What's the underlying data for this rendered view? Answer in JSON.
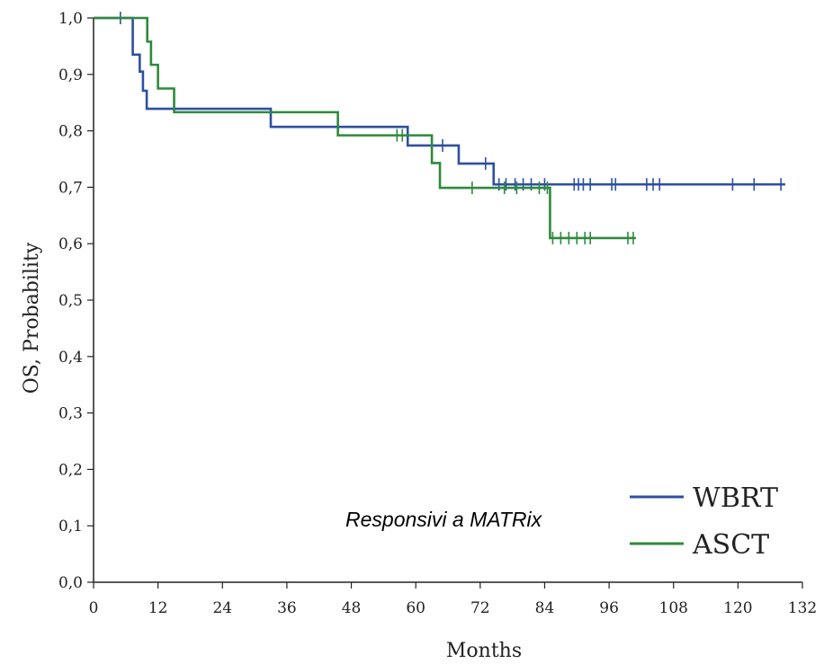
{
  "chart_data": {
    "type": "line",
    "title": "",
    "xlabel": "Months",
    "ylabel": "OS, Probability",
    "xlim": [
      0,
      132
    ],
    "ylim": [
      0,
      1
    ],
    "x_ticks": [
      "0",
      "12",
      "24",
      "36",
      "48",
      "60",
      "72",
      "84",
      "96",
      "108",
      "120",
      "132"
    ],
    "y_ticks": [
      "0,0",
      "0,1",
      "0,2",
      "0,3",
      "0,4",
      "0,5",
      "0,6",
      "0,7",
      "0,8",
      "0,9",
      "1,0"
    ],
    "grid": false,
    "legend_position": "bottom-right",
    "annotation": "Responsivi a MATRix",
    "series": [
      {
        "name": "WBRT",
        "color": "#2e4fa3",
        "steps": [
          [
            0,
            1.0
          ],
          [
            7.3,
            0.935
          ],
          [
            8.6,
            0.905
          ],
          [
            9.2,
            0.871
          ],
          [
            9.9,
            0.839
          ],
          [
            33,
            0.807
          ],
          [
            58.5,
            0.774
          ],
          [
            68,
            0.742
          ],
          [
            74.5,
            0.71
          ],
          [
            74.5,
            0.705
          ],
          [
            128.8,
            0.705
          ]
        ],
        "censor": [
          5,
          65,
          73,
          75.5,
          76.8,
          78.5,
          80,
          81.5,
          84,
          89.5,
          90.3,
          91.2,
          92.5,
          96.5,
          97.2,
          103,
          104.2,
          105.4,
          119,
          123,
          128
        ]
      },
      {
        "name": "ASCT",
        "color": "#2e8a3c",
        "steps": [
          [
            0,
            1.0
          ],
          [
            10,
            0.958
          ],
          [
            10.7,
            0.917
          ],
          [
            12,
            0.875
          ],
          [
            15,
            0.833
          ],
          [
            45.5,
            0.792
          ],
          [
            63,
            0.743
          ],
          [
            64.5,
            0.699
          ],
          [
            85,
            0.61
          ],
          [
            101,
            0.61
          ]
        ],
        "censor": [
          56.5,
          57.5,
          70.5,
          76.5,
          78.8,
          83,
          84.5,
          85.5,
          87,
          88.5,
          90,
          91.5,
          92.5,
          99.5,
          100.5
        ]
      }
    ]
  }
}
